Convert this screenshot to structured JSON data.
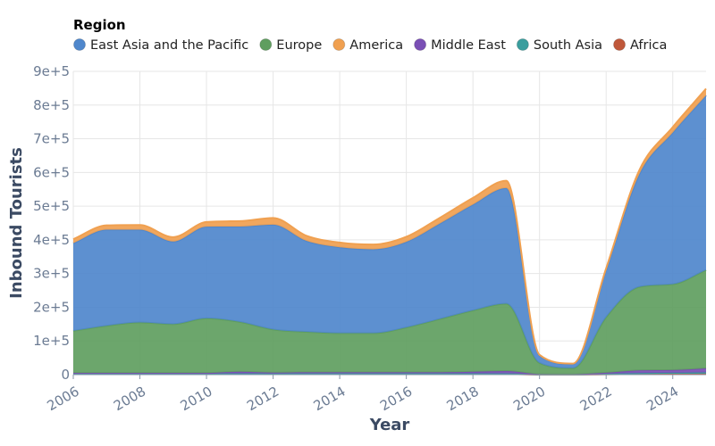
{
  "chart_data": {
    "type": "area",
    "stacked": true,
    "legend": {
      "title": "Region",
      "position": "top-left"
    },
    "xlabel": "Year",
    "ylabel": "Inbound Tourists",
    "xlim": [
      2006,
      2025
    ],
    "ylim": [
      0,
      900000
    ],
    "x_ticks": [
      2006,
      2008,
      2010,
      2012,
      2014,
      2016,
      2018,
      2020,
      2022,
      2024
    ],
    "x_tick_labels": [
      "2006",
      "2008",
      "2010",
      "2012",
      "2014",
      "2016",
      "2018",
      "2020",
      "2022",
      "2024"
    ],
    "y_ticks": [
      0,
      100000,
      200000,
      300000,
      400000,
      500000,
      600000,
      700000,
      800000,
      900000
    ],
    "y_tick_labels": [
      "0",
      "1e+5",
      "2e+5",
      "3e+5",
      "4e+5",
      "5e+5",
      "6e+5",
      "7e+5",
      "8e+5",
      "9e+5"
    ],
    "grid": true,
    "x": [
      2006,
      2007,
      2008,
      2009,
      2010,
      2011,
      2012,
      2013,
      2014,
      2015,
      2016,
      2017,
      2018,
      2019,
      2020,
      2021,
      2022,
      2023,
      2024,
      2025
    ],
    "series": [
      {
        "name": "Africa",
        "color": "#c0583a",
        "values": [
          1500,
          1500,
          1500,
          1500,
          1500,
          1500,
          1500,
          1500,
          1500,
          1500,
          1500,
          1500,
          1500,
          1500,
          300,
          200,
          1000,
          2000,
          2500,
          3000
        ]
      },
      {
        "name": "South Asia",
        "color": "#3a9e9e",
        "values": [
          2000,
          2000,
          2000,
          2000,
          2000,
          2000,
          2000,
          2000,
          2000,
          2000,
          2000,
          2000,
          2000,
          2000,
          400,
          300,
          1500,
          2500,
          3000,
          3500
        ]
      },
      {
        "name": "Middle East",
        "color": "#7a4fb5",
        "values": [
          1500,
          1500,
          1500,
          1500,
          1500,
          5000,
          2500,
          3500,
          3500,
          3500,
          3500,
          3500,
          5000,
          7000,
          1000,
          800,
          3000,
          8000,
          8000,
          12000
        ]
      },
      {
        "name": "Europe",
        "color": "#5f9e5f",
        "values": [
          125000,
          140000,
          150000,
          145000,
          162000,
          148000,
          128000,
          120000,
          116000,
          116000,
          133000,
          158000,
          182000,
          200000,
          33000,
          18000,
          165000,
          248000,
          255000,
          292000
        ]
      },
      {
        "name": "East Asia and the Pacific",
        "color": "#4f87cc",
        "values": [
          260000,
          285000,
          275000,
          245000,
          272000,
          283000,
          311000,
          270000,
          255000,
          249000,
          254000,
          283000,
          314000,
          343000,
          22000,
          12000,
          140000,
          335000,
          450000,
          518000
        ]
      },
      {
        "name": "America",
        "color": "#f0a050",
        "values": [
          12000,
          13000,
          14000,
          13000,
          14000,
          16000,
          20000,
          15000,
          14000,
          14000,
          15000,
          17000,
          20000,
          22000,
          2000,
          1500,
          5000,
          12000,
          16000,
          20000
        ]
      }
    ],
    "legend_order": [
      "East Asia and the Pacific",
      "Europe",
      "America",
      "Middle East",
      "South Asia",
      "Africa"
    ]
  }
}
